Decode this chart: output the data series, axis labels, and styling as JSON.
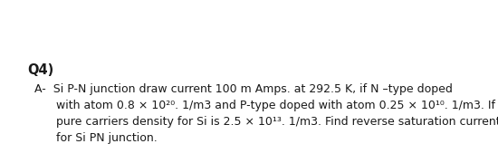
{
  "background_color": "#ffffff",
  "title": "Q4)",
  "title_fontsize": 10.5,
  "body_lines": [
    "  A-  Si P-N junction draw current 100 m Amps. at 292.5 K, if N –type doped",
    "        with atom 0.8 × 10²⁰. 1/m3 and P-type doped with atom 0.25 × 10¹⁰. 1/m3. If",
    "        pure carriers density for Si is 2.5 × 10¹³. 1/m3. Find reverse saturation current",
    "        for Si PN junction."
  ],
  "body_fontsize": 9.0,
  "font_color": "#1a1a1a",
  "fig_width": 5.5,
  "fig_height": 1.8,
  "dpi": 100
}
